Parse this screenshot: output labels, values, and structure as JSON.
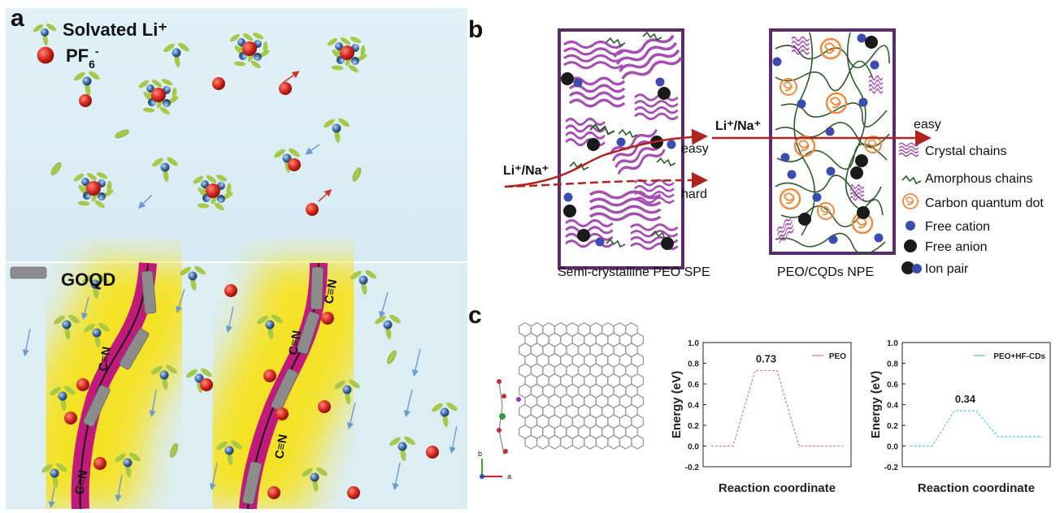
{
  "panel_a": {
    "label": "a",
    "legend_solvated": "Solvated Li⁺",
    "legend_pf6": "PF",
    "legend_pf6_sub": "6",
    "legend_pf6_sup": "-",
    "legend_goqd": "GOQD",
    "cn_label": "C≡N"
  },
  "panel_b": {
    "label": "b",
    "left_box_caption": "Semi-crystalline PEO SPE",
    "right_box_caption": "PEO/CQDs NPE",
    "ion_label_left": "Li⁺/Na⁺",
    "ion_label_right": "Li⁺/Na⁺",
    "easy_left": "easy",
    "hard_left": "hard",
    "easy_right": "easy",
    "legend": [
      {
        "key": "crystal",
        "label": "Crystal chains"
      },
      {
        "key": "amorphous",
        "label": "Amorphous chains"
      },
      {
        "key": "cqd",
        "label": "Carbon quantum dot"
      },
      {
        "key": "cation",
        "label": "Free cation"
      },
      {
        "key": "anion",
        "label": "Free anion"
      },
      {
        "key": "pair",
        "label": "Ion pair"
      }
    ]
  },
  "panel_c": {
    "label": "c",
    "axis_b": "b",
    "axis_a": "a"
  },
  "chart_data": [
    {
      "type": "line",
      "series": [
        {
          "name": "PEO",
          "color": "#d98080",
          "x": [
            0,
            1,
            2,
            3,
            4,
            5,
            6
          ],
          "y": [
            0,
            0,
            0.73,
            0.73,
            0,
            0,
            0
          ]
        }
      ],
      "peak_label": "0.73",
      "xlabel": "Reaction coordinate",
      "ylabel": "Energy (eV)",
      "ylim": [
        -0.2,
        1.0
      ],
      "yticks": [
        "-0.2",
        "0.0",
        "0.2",
        "0.4",
        "0.6",
        "0.8",
        "1.0"
      ],
      "legend": "top-right"
    },
    {
      "type": "line",
      "series": [
        {
          "name": "PEO+HF-CDs",
          "color": "#5fc4d8",
          "x": [
            0,
            1,
            2,
            3,
            4,
            5,
            6
          ],
          "y": [
            0,
            0,
            0.34,
            0.34,
            0.09,
            0.09,
            0.09
          ]
        }
      ],
      "peak_label": "0.34",
      "xlabel": "Reaction coordinate",
      "ylabel": "Energy (eV)",
      "ylim": [
        -0.2,
        1.0
      ],
      "yticks": [
        "-0.2",
        "0.0",
        "0.2",
        "0.4",
        "0.6",
        "0.8",
        "1.0"
      ],
      "legend": "top-right"
    }
  ]
}
